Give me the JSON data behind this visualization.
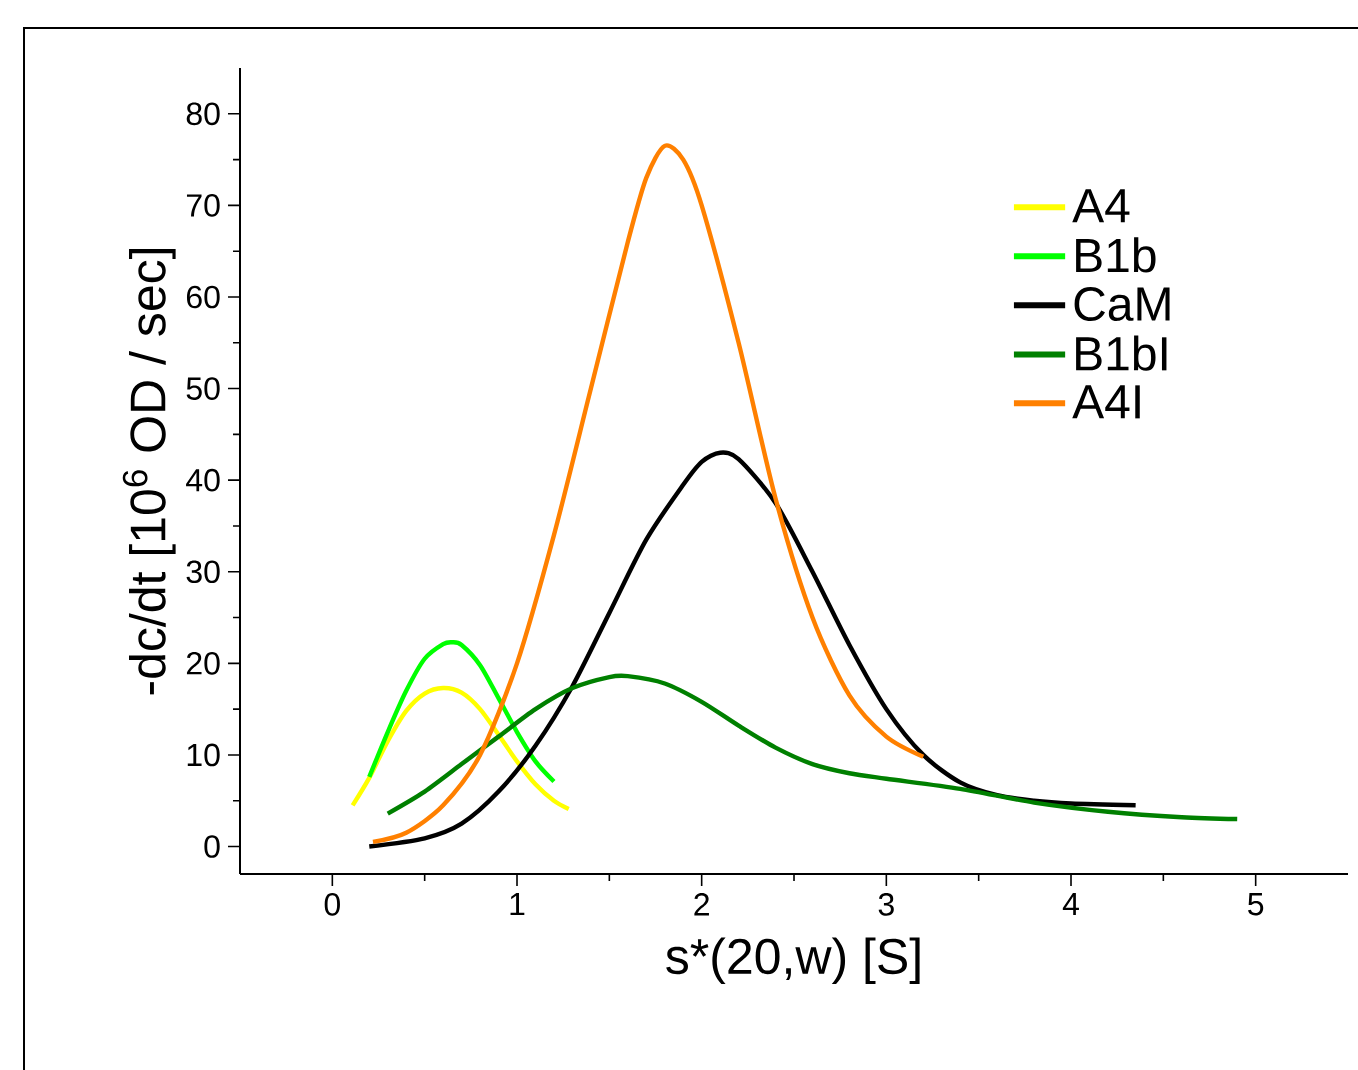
{
  "chart_data": {
    "type": "line",
    "xlabel": "s*(20,w) [S]",
    "ylabel": "-dc/dt [10$^{6}$ OD / sec]",
    "xlim": [
      -0.5,
      5.5
    ],
    "ylim": [
      -3,
      85
    ],
    "xticks": [
      0,
      1,
      2,
      3,
      4,
      5
    ],
    "yticks": [
      0,
      10,
      20,
      30,
      40,
      50,
      60,
      70,
      80
    ],
    "legend": "top right",
    "grid": false,
    "marker": "none",
    "line_style": "solid",
    "series": [
      {
        "name": "A4",
        "color": "#ffff00",
        "x": [
          0.11,
          0.2,
          0.3,
          0.4,
          0.5,
          0.6,
          0.7,
          0.8,
          0.9,
          1.0,
          1.1,
          1.2,
          1.28
        ],
        "values": [
          4.5,
          7.5,
          11.5,
          14.8,
          16.7,
          17.3,
          16.8,
          15.0,
          12.2,
          9.3,
          6.8,
          5.0,
          4.1
        ]
      },
      {
        "name": "B1b",
        "color": "#00ff00",
        "x": [
          0.2,
          0.3,
          0.4,
          0.5,
          0.6,
          0.65,
          0.7,
          0.8,
          0.9,
          1.0,
          1.1,
          1.2
        ],
        "values": [
          7.6,
          12.5,
          17,
          20.5,
          22.1,
          22.3,
          22,
          19.8,
          16.2,
          12.5,
          9.3,
          7.1
        ]
      },
      {
        "name": "CaM",
        "color": "#000000",
        "x": [
          0.2,
          0.5,
          0.7,
          0.9,
          1.1,
          1.3,
          1.5,
          1.7,
          1.9,
          2.0,
          2.1,
          2.2,
          2.4,
          2.6,
          2.8,
          3.0,
          3.2,
          3.4,
          3.6,
          3.8,
          4.0,
          4.35
        ],
        "values": [
          0,
          0.9,
          2.5,
          6,
          11,
          17.5,
          25.5,
          33.5,
          39.5,
          42,
          43,
          42.3,
          37.5,
          30,
          22,
          15,
          10,
          7,
          5.6,
          5,
          4.7,
          4.5
        ]
      },
      {
        "name": "B1bI",
        "color": "#008000",
        "x": [
          0.3,
          0.5,
          0.7,
          0.9,
          1.1,
          1.3,
          1.5,
          1.6,
          1.8,
          2.0,
          2.2,
          2.4,
          2.6,
          2.8,
          3.0,
          3.4,
          3.8,
          4.2,
          4.6,
          4.9
        ],
        "values": [
          3.6,
          6,
          9,
          12,
          15,
          17.3,
          18.5,
          18.6,
          17.8,
          15.8,
          13.2,
          10.8,
          9,
          8,
          7.4,
          6.3,
          4.8,
          3.8,
          3.2,
          3.0
        ]
      },
      {
        "name": "A4I",
        "color": "#ff8000",
        "x": [
          0.22,
          0.4,
          0.6,
          0.8,
          1.0,
          1.2,
          1.4,
          1.6,
          1.7,
          1.8,
          1.9,
          2.0,
          2.2,
          2.4,
          2.6,
          2.8,
          3.0,
          3.2
        ],
        "values": [
          0.5,
          1.5,
          4.5,
          10,
          20,
          34,
          50,
          66,
          73,
          76.5,
          75,
          70,
          55,
          38,
          25,
          16.5,
          12,
          9.8
        ]
      }
    ]
  }
}
